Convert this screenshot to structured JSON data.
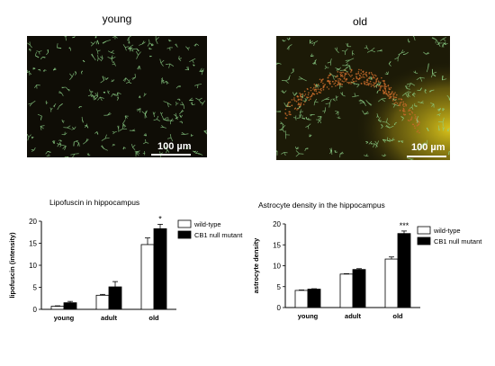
{
  "panels": {
    "young": {
      "title": "young",
      "scalebar": "100 µm"
    },
    "old": {
      "title": "old",
      "scalebar": "100 µm"
    }
  },
  "colors": {
    "wild_type": "#ffffff",
    "mutant": "#000000",
    "astrocyte_green": "#8fd48a",
    "lipofuscin_orange": "#c46a2a",
    "old_background_yellow": "#d8c21a"
  },
  "chart_data": [
    {
      "type": "bar",
      "title": "Lipofuscin in hippocampus",
      "xlabel": "",
      "ylabel": "lipofuscin (intensity)",
      "categories": [
        "young",
        "adult",
        "old"
      ],
      "ylim": [
        0,
        20
      ],
      "yticks": [
        0,
        5,
        10,
        15,
        20
      ],
      "legend_position": "top-right",
      "series": [
        {
          "name": "wild-type",
          "values": [
            0.7,
            3.2,
            14.7
          ],
          "errors": [
            0.1,
            0.2,
            1.5
          ]
        },
        {
          "name": "CB1 null mutant",
          "values": [
            1.5,
            5.1,
            18.3
          ],
          "errors": [
            0.3,
            1.2,
            1.0
          ]
        }
      ],
      "annotations": [
        {
          "category": "old",
          "series": "CB1 null mutant",
          "text": "*"
        }
      ]
    },
    {
      "type": "bar",
      "title": "Astrocyte density in the hippocampus",
      "xlabel": "",
      "ylabel": "astrocyte density",
      "categories": [
        "young",
        "adult",
        "old"
      ],
      "ylim": [
        0,
        20
      ],
      "yticks": [
        0,
        5,
        10,
        15,
        20
      ],
      "legend_position": "top-right",
      "series": [
        {
          "name": "wild-type",
          "values": [
            4.1,
            8.0,
            11.6
          ],
          "errors": [
            0.1,
            0.1,
            0.5
          ]
        },
        {
          "name": "CB1 null mutant",
          "values": [
            4.4,
            9.1,
            17.7
          ],
          "errors": [
            0.1,
            0.2,
            0.6
          ]
        }
      ],
      "annotations": [
        {
          "category": "old",
          "series": "CB1 null mutant",
          "text": "***"
        }
      ]
    }
  ]
}
